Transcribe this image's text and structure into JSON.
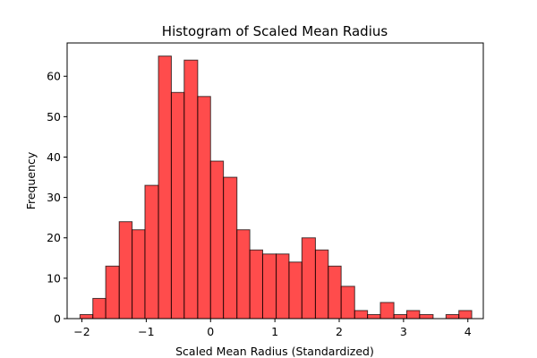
{
  "chart_data": {
    "type": "bar",
    "title": "Histogram of Scaled Mean Radius",
    "xlabel": "Scaled Mean Radius (Standardized)",
    "ylabel": "Frequency",
    "xlim": [
      -2.23,
      4.24
    ],
    "ylim": [
      0,
      68.25
    ],
    "xticks": [
      -2,
      -1,
      0,
      1,
      2,
      3,
      4
    ],
    "yticks": [
      0,
      10,
      20,
      30,
      40,
      50,
      60
    ],
    "grid": false,
    "bar_color": "#ff0000",
    "bar_alpha": 0.7,
    "edge_color": "#000000",
    "bins": [
      {
        "x0": -2.03,
        "x1": -1.83,
        "count": 1
      },
      {
        "x0": -1.83,
        "x1": -1.63,
        "count": 5
      },
      {
        "x0": -1.63,
        "x1": -1.42,
        "count": 13
      },
      {
        "x0": -1.42,
        "x1": -1.22,
        "count": 24
      },
      {
        "x0": -1.22,
        "x1": -1.02,
        "count": 22
      },
      {
        "x0": -1.02,
        "x1": -0.81,
        "count": 33
      },
      {
        "x0": -0.81,
        "x1": -0.61,
        "count": 65
      },
      {
        "x0": -0.61,
        "x1": -0.41,
        "count": 56
      },
      {
        "x0": -0.41,
        "x1": -0.2,
        "count": 64
      },
      {
        "x0": -0.2,
        "x1": 0.0,
        "count": 55
      },
      {
        "x0": 0.0,
        "x1": 0.2,
        "count": 39
      },
      {
        "x0": 0.2,
        "x1": 0.41,
        "count": 35
      },
      {
        "x0": 0.41,
        "x1": 0.61,
        "count": 22
      },
      {
        "x0": 0.61,
        "x1": 0.81,
        "count": 17
      },
      {
        "x0": 0.81,
        "x1": 1.02,
        "count": 16
      },
      {
        "x0": 1.02,
        "x1": 1.22,
        "count": 16
      },
      {
        "x0": 1.22,
        "x1": 1.42,
        "count": 14
      },
      {
        "x0": 1.42,
        "x1": 1.63,
        "count": 20
      },
      {
        "x0": 1.63,
        "x1": 1.83,
        "count": 17
      },
      {
        "x0": 1.83,
        "x1": 2.03,
        "count": 13
      },
      {
        "x0": 2.03,
        "x1": 2.24,
        "count": 8
      },
      {
        "x0": 2.24,
        "x1": 2.44,
        "count": 2
      },
      {
        "x0": 2.44,
        "x1": 2.64,
        "count": 1
      },
      {
        "x0": 2.64,
        "x1": 2.85,
        "count": 4
      },
      {
        "x0": 2.85,
        "x1": 3.05,
        "count": 1
      },
      {
        "x0": 3.05,
        "x1": 3.25,
        "count": 2
      },
      {
        "x0": 3.25,
        "x1": 3.46,
        "count": 1
      },
      {
        "x0": 3.46,
        "x1": 3.66,
        "count": 0
      },
      {
        "x0": 3.66,
        "x1": 3.86,
        "count": 1
      },
      {
        "x0": 3.86,
        "x1": 4.06,
        "count": 2
      }
    ]
  }
}
